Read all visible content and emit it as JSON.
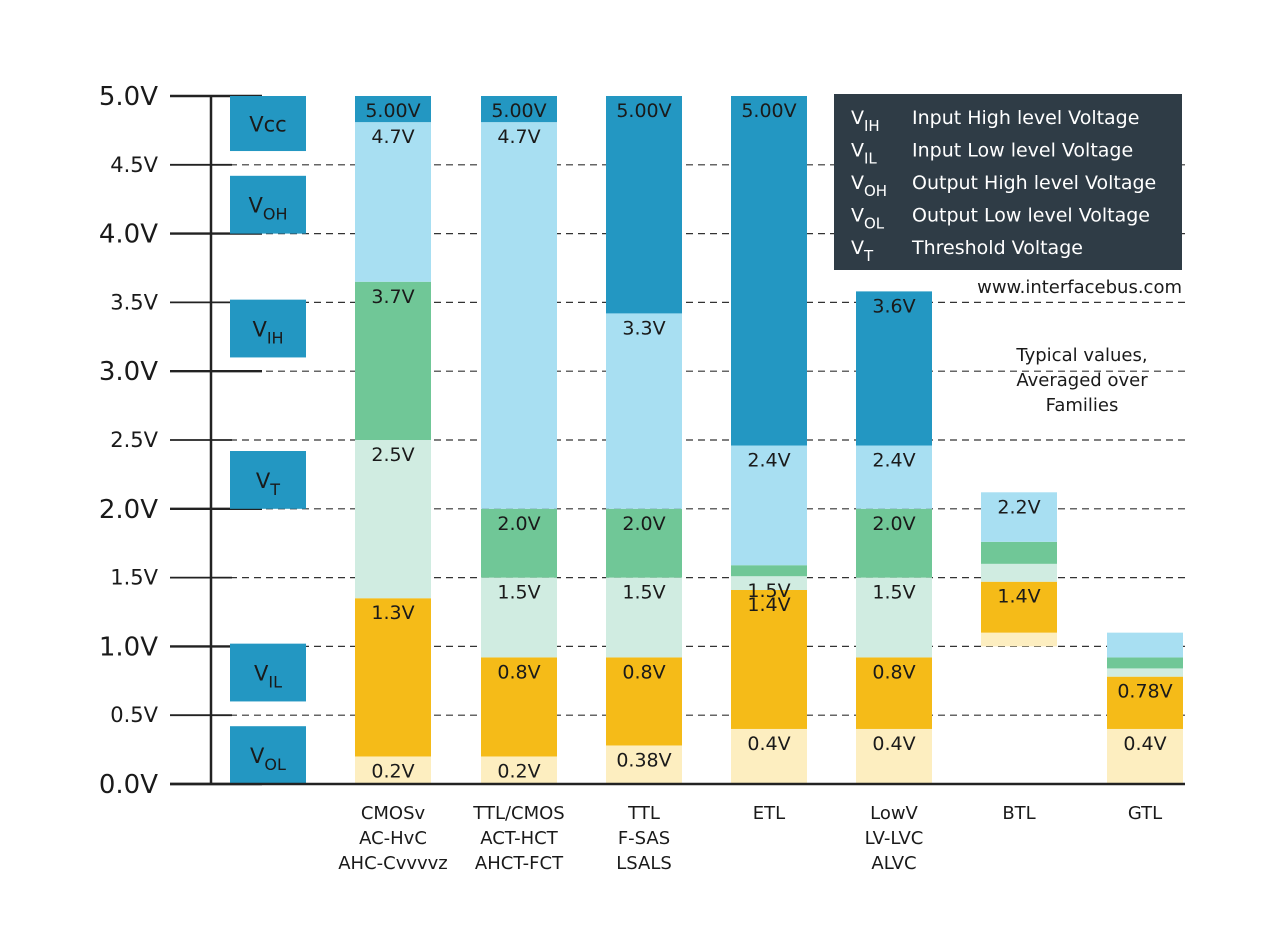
{
  "chart_data": {
    "type": "bar",
    "title": "",
    "xlabel": "",
    "ylabel": "",
    "ylim": [
      0,
      5
    ],
    "grid": true,
    "y_ticks": [
      {
        "value": 0.0,
        "label": "0.0V"
      },
      {
        "value": 0.5,
        "label": "0.5V"
      },
      {
        "value": 1.0,
        "label": "1.0V"
      },
      {
        "value": 1.5,
        "label": "1.5V"
      },
      {
        "value": 2.0,
        "label": "2.0V"
      },
      {
        "value": 2.5,
        "label": "2.5V"
      },
      {
        "value": 3.0,
        "label": "3.0V"
      },
      {
        "value": 3.5,
        "label": "3.5V"
      },
      {
        "value": 4.0,
        "label": "4.0V"
      },
      {
        "value": 4.5,
        "label": "4.5V"
      },
      {
        "value": 5.0,
        "label": "5.0V"
      }
    ],
    "colors": {
      "VCC": "#2397c2",
      "VOH": "#a8dff2",
      "VIH": "#70c797",
      "VT": "#d0ece1",
      "VIL": "#f5bb18",
      "VOL": "#fdeec0"
    },
    "zone_boxes": [
      {
        "key": "VCC",
        "label": "Vcc",
        "sub": "",
        "y0": 4.6,
        "y1": 5.0
      },
      {
        "key": "VOH",
        "label": "V",
        "sub": "OH",
        "y0": 4.0,
        "y1": 4.42
      },
      {
        "key": "VIH",
        "label": "V",
        "sub": "IH",
        "y0": 3.1,
        "y1": 3.52
      },
      {
        "key": "VT",
        "label": "V",
        "sub": "T",
        "y0": 2.0,
        "y1": 2.42
      },
      {
        "key": "VIL",
        "label": "V",
        "sub": "IL",
        "y0": 0.6,
        "y1": 1.02
      },
      {
        "key": "VOL",
        "label": "V",
        "sub": "OL",
        "y0": 0.0,
        "y1": 0.42
      }
    ],
    "categories": [
      {
        "lines": [
          "CMOSv",
          "AC-HvC",
          "AHC-Cvvvvz"
        ],
        "segments": [
          {
            "zone": "VOL",
            "y0": 0.0,
            "y1": 0.2,
            "label": "0.2V"
          },
          {
            "zone": "VIL",
            "y0": 0.2,
            "y1": 1.35,
            "label": "1.3V"
          },
          {
            "zone": "VT",
            "y0": 1.35,
            "y1": 2.5,
            "label": "2.5V"
          },
          {
            "zone": "VIH",
            "y0": 2.5,
            "y1": 3.65,
            "label": "3.7V"
          },
          {
            "zone": "VOH",
            "y0": 3.65,
            "y1": 4.81,
            "label": "4.7V"
          },
          {
            "zone": "VCC",
            "y0": 4.81,
            "y1": 5.0,
            "label": "5.00V"
          }
        ]
      },
      {
        "lines": [
          "TTL/CMOS",
          "ACT-HCT",
          "AHCT-FCT"
        ],
        "segments": [
          {
            "zone": "VOL",
            "y0": 0.0,
            "y1": 0.2,
            "label": "0.2V"
          },
          {
            "zone": "VIL",
            "y0": 0.2,
            "y1": 0.92,
            "label": "0.8V"
          },
          {
            "zone": "VT",
            "y0": 0.92,
            "y1": 1.5,
            "label": "1.5V"
          },
          {
            "zone": "VIH",
            "y0": 1.5,
            "y1": 2.0,
            "label": "2.0V"
          },
          {
            "zone": "VOH",
            "y0": 2.0,
            "y1": 4.81,
            "label": "4.7V"
          },
          {
            "zone": "VCC",
            "y0": 4.81,
            "y1": 5.0,
            "label": "5.00V"
          }
        ]
      },
      {
        "lines": [
          "TTL",
          "F-SAS",
          "LSALS"
        ],
        "segments": [
          {
            "zone": "VOL",
            "y0": 0.0,
            "y1": 0.28,
            "label": "0.38V"
          },
          {
            "zone": "VIL",
            "y0": 0.28,
            "y1": 0.92,
            "label": "0.8V"
          },
          {
            "zone": "VT",
            "y0": 0.92,
            "y1": 1.5,
            "label": "1.5V"
          },
          {
            "zone": "VIH",
            "y0": 1.5,
            "y1": 2.0,
            "label": "2.0V"
          },
          {
            "zone": "VOH",
            "y0": 2.0,
            "y1": 3.42,
            "label": "3.3V"
          },
          {
            "zone": "VCC",
            "y0": 3.42,
            "y1": 5.0,
            "label": "5.00V"
          }
        ]
      },
      {
        "lines": [
          "ETL"
        ],
        "segments": [
          {
            "zone": "VOL",
            "y0": 0.0,
            "y1": 0.4,
            "label": "0.4V"
          },
          {
            "zone": "VIL",
            "y0": 0.4,
            "y1": 1.41,
            "label": "1.4V"
          },
          {
            "zone": "VT",
            "y0": 1.41,
            "y1": 1.51,
            "label": "1.5V"
          },
          {
            "zone": "VIH",
            "y0": 1.51,
            "y1": 1.59,
            "label": ""
          },
          {
            "zone": "VOH",
            "y0": 1.59,
            "y1": 2.46,
            "label": "2.4V"
          },
          {
            "zone": "VCC",
            "y0": 2.46,
            "y1": 5.0,
            "label": "5.00V"
          }
        ]
      },
      {
        "lines": [
          "LowV",
          "LV-LVC",
          "ALVC"
        ],
        "segments": [
          {
            "zone": "VOL",
            "y0": 0.0,
            "y1": 0.4,
            "label": "0.4V"
          },
          {
            "zone": "VIL",
            "y0": 0.4,
            "y1": 0.92,
            "label": "0.8V"
          },
          {
            "zone": "VT",
            "y0": 0.92,
            "y1": 1.5,
            "label": "1.5V"
          },
          {
            "zone": "VIH",
            "y0": 1.5,
            "y1": 2.0,
            "label": "2.0V"
          },
          {
            "zone": "VOH",
            "y0": 2.0,
            "y1": 2.46,
            "label": "2.4V"
          },
          {
            "zone": "VCC",
            "y0": 2.46,
            "y1": 3.58,
            "label": "3.6V"
          }
        ]
      },
      {
        "lines": [
          "BTL"
        ],
        "segments": [
          {
            "zone": "VOL",
            "y0": 1.0,
            "y1": 1.1,
            "label": ""
          },
          {
            "zone": "VIL",
            "y0": 1.1,
            "y1": 1.47,
            "label": "1.4V"
          },
          {
            "zone": "VT",
            "y0": 1.47,
            "y1": 1.6,
            "label": ""
          },
          {
            "zone": "VIH",
            "y0": 1.6,
            "y1": 1.76,
            "label": ""
          },
          {
            "zone": "VOH",
            "y0": 1.76,
            "y1": 2.12,
            "label": "2.2V"
          }
        ]
      },
      {
        "lines": [
          "GTL"
        ],
        "segments": [
          {
            "zone": "VOL",
            "y0": 0.0,
            "y1": 0.4,
            "label": "0.4V"
          },
          {
            "zone": "VIL",
            "y0": 0.4,
            "y1": 0.78,
            "label": "0.78V"
          },
          {
            "zone": "VT",
            "y0": 0.78,
            "y1": 0.84,
            "label": ""
          },
          {
            "zone": "VIH",
            "y0": 0.84,
            "y1": 0.92,
            "label": ""
          },
          {
            "zone": "VOH",
            "y0": 0.92,
            "y1": 1.1,
            "label": ""
          }
        ]
      }
    ],
    "legend": [
      {
        "sym": "V",
        "sub": "IH",
        "text": "Input High level Voltage"
      },
      {
        "sym": "V",
        "sub": "IL",
        "text": "Input Low level Voltage"
      },
      {
        "sym": "V",
        "sub": "OH",
        "text": "Output High level Voltage"
      },
      {
        "sym": "V",
        "sub": "OL",
        "text": "Output Low level Voltage"
      },
      {
        "sym": "V",
        "sub": "T",
        "text": "Threshold Voltage"
      }
    ],
    "legend_placement": "top-right",
    "legend_bg": "#2f3c46",
    "website": "www.interfacebus.com",
    "note_lines": [
      "Typical values,",
      "Averaged over",
      "Families"
    ]
  }
}
